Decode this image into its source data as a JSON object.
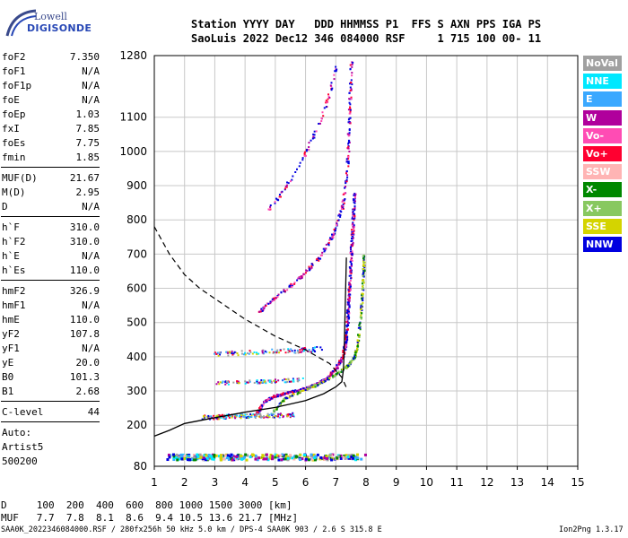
{
  "logo": {
    "line1": "Lowell",
    "line2": "DIGISONDE"
  },
  "header": {
    "line1": "Station YYYY DAY   DDD HHMMSS P1  FFS S AXN PPS IGA PS",
    "line2": "SaoLuis 2022 Dec12 346 084000 RSF     1 715 100 00- 11"
  },
  "params": {
    "g1": [
      {
        "label": "foF2",
        "value": "7.350"
      },
      {
        "label": "foF1",
        "value": "N/A"
      },
      {
        "label": "foF1p",
        "value": "N/A"
      },
      {
        "label": "foE",
        "value": "N/A"
      },
      {
        "label": "foEp",
        "value": "1.03"
      },
      {
        "label": "fxI",
        "value": "7.85"
      },
      {
        "label": "foEs",
        "value": "7.75"
      },
      {
        "label": "fmin",
        "value": "1.85"
      }
    ],
    "g2": [
      {
        "label": "MUF(D)",
        "value": "21.67"
      },
      {
        "label": "M(D)",
        "value": "2.95"
      },
      {
        "label": "D",
        "value": "N/A"
      }
    ],
    "g3": [
      {
        "label": "h`F",
        "value": "310.0"
      },
      {
        "label": "h`F2",
        "value": "310.0"
      },
      {
        "label": "h`E",
        "value": "N/A"
      },
      {
        "label": "h`Es",
        "value": "110.0"
      }
    ],
    "g4": [
      {
        "label": "hmF2",
        "value": "326.9"
      },
      {
        "label": "hmF1",
        "value": "N/A"
      },
      {
        "label": "hmE",
        "value": "110.0"
      },
      {
        "label": "yF2",
        "value": "107.8"
      },
      {
        "label": "yF1",
        "value": "N/A"
      },
      {
        "label": "yE",
        "value": "20.0"
      },
      {
        "label": "B0",
        "value": "101.3"
      },
      {
        "label": "B1",
        "value": "2.68"
      }
    ],
    "g5": [
      {
        "label": "C-level",
        "value": "44"
      }
    ],
    "autoText": [
      "Auto:",
      "Artist5",
      "500200"
    ]
  },
  "legend": [
    {
      "label": "NoVal",
      "color": "#a0a0a0"
    },
    {
      "label": "NNE",
      "color": "#00e8ff"
    },
    {
      "label": "E",
      "color": "#3aa8ff"
    },
    {
      "label": "W",
      "color": "#b0009c"
    },
    {
      "label": "Vo-",
      "color": "#ff4cb4"
    },
    {
      "label": "Vo+",
      "color": "#ff0030"
    },
    {
      "label": "SSW",
      "color": "#ffb4b4"
    },
    {
      "label": "X-",
      "color": "#008800"
    },
    {
      "label": "X+",
      "color": "#88c860"
    },
    {
      "label": "SSE",
      "color": "#d4d400"
    },
    {
      "label": "NNW",
      "color": "#0000e0"
    }
  ],
  "footer": {
    "line1": "D     100  200  400  600  800 1000 1500 3000 [km]",
    "line2": "MUF   7.7  7.8  8.1  8.6  9.4 10.5 13.6 21.7 [MHz]",
    "line3": "SAA0K_2022346084000.RSF / 280fx256h 50 kHz 5.0 km / DPS-4 SAA0K 903 / 2.6 S 315.8 E",
    "version": "Ion2Png 1.3.17"
  },
  "chart_data": {
    "type": "scatter",
    "xlim": [
      1,
      15
    ],
    "ylim": [
      80,
      1280
    ],
    "xticks": [
      1,
      2,
      3,
      4,
      5,
      6,
      7,
      8,
      9,
      10,
      11,
      12,
      13,
      14,
      15
    ],
    "yticks": [
      80,
      200,
      300,
      400,
      500,
      600,
      700,
      800,
      900,
      1000,
      1100,
      1280
    ],
    "grid": true,
    "traces": {
      "F2_O": [
        [
          4.3,
          225
        ],
        [
          4.6,
          270
        ],
        [
          4.9,
          285
        ],
        [
          5.3,
          295
        ],
        [
          5.8,
          305
        ],
        [
          6.3,
          320
        ],
        [
          6.7,
          340
        ],
        [
          7.0,
          370
        ],
        [
          7.2,
          400
        ],
        [
          7.3,
          440
        ],
        [
          7.35,
          480
        ],
        [
          7.4,
          560
        ],
        [
          7.45,
          640
        ],
        [
          7.5,
          720
        ],
        [
          7.55,
          800
        ],
        [
          7.6,
          880
        ]
      ],
      "F2_X": [
        [
          4.9,
          240
        ],
        [
          5.3,
          280
        ],
        [
          5.8,
          300
        ],
        [
          6.3,
          318
        ],
        [
          6.8,
          340
        ],
        [
          7.3,
          370
        ],
        [
          7.6,
          400
        ],
        [
          7.7,
          440
        ],
        [
          7.8,
          520
        ],
        [
          7.85,
          580
        ],
        [
          7.9,
          650
        ],
        [
          7.9,
          700
        ]
      ],
      "F2_2hop": [
        [
          4.4,
          530
        ],
        [
          4.9,
          570
        ],
        [
          5.5,
          610
        ],
        [
          6.0,
          650
        ],
        [
          6.5,
          700
        ],
        [
          6.9,
          760
        ],
        [
          7.2,
          840
        ],
        [
          7.35,
          940
        ],
        [
          7.4,
          1040
        ],
        [
          7.45,
          1150
        ],
        [
          7.5,
          1270
        ]
      ],
      "F2_2hop_upper": [
        [
          4.7,
          830
        ],
        [
          5.2,
          880
        ],
        [
          5.7,
          950
        ],
        [
          6.1,
          1020
        ],
        [
          6.5,
          1100
        ],
        [
          6.8,
          1180
        ],
        [
          7.0,
          1250
        ]
      ],
      "Es": [
        [
          2.6,
          225
        ],
        [
          3.5,
          228
        ],
        [
          4.5,
          230
        ],
        [
          5.6,
          232
        ]
      ],
      "Es_mid": [
        [
          3.0,
          325
        ],
        [
          4.5,
          330
        ],
        [
          5.9,
          335
        ]
      ],
      "Es_mid2": [
        [
          2.9,
          410
        ],
        [
          4.2,
          415
        ],
        [
          5.6,
          420
        ],
        [
          6.5,
          425
        ]
      ],
      "E_layer_bottom": [
        [
          1.5,
          110
        ],
        [
          4.0,
          110
        ],
        [
          7.8,
          110
        ]
      ]
    },
    "profile_solid": [
      [
        1.0,
        168
      ],
      [
        1.5,
        185
      ],
      [
        2.0,
        205
      ],
      [
        3.0,
        222
      ],
      [
        4.0,
        238
      ],
      [
        5.0,
        252
      ],
      [
        6.0,
        272
      ],
      [
        6.6,
        292
      ],
      [
        7.0,
        312
      ],
      [
        7.2,
        326.9
      ],
      [
        7.25,
        360
      ],
      [
        7.28,
        420
      ],
      [
        7.3,
        500
      ],
      [
        7.32,
        580
      ],
      [
        7.35,
        690
      ]
    ],
    "profile_dashed": [
      [
        1.0,
        780
      ],
      [
        1.5,
        700
      ],
      [
        2.0,
        640
      ],
      [
        2.5,
        600
      ],
      [
        3.0,
        570
      ],
      [
        4.0,
        510
      ],
      [
        5.0,
        460
      ],
      [
        6.0,
        420
      ],
      [
        6.8,
        380
      ],
      [
        7.2,
        340
      ],
      [
        7.35,
        310
      ]
    ]
  }
}
